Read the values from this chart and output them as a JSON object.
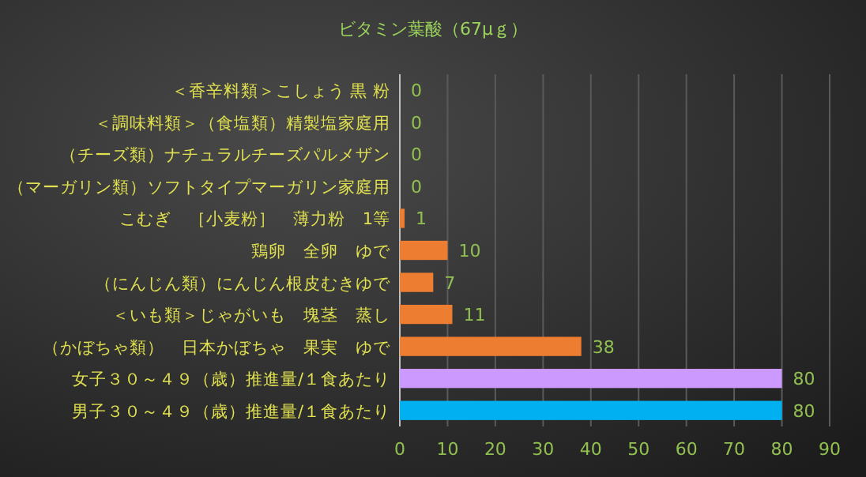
{
  "chart_data": {
    "type": "bar",
    "orientation": "horizontal",
    "title": "ビタミン葉酸（67μｇ）",
    "categories": [
      "＜香辛料類＞こしょう 黒 粉",
      "＜調味料類＞（食塩類）精製塩家庭用",
      "（チーズ類）ナチュラルチーズパルメザン",
      "（マーガリン類）ソフトタイプマーガリン家庭用",
      "こむぎ　［小麦粉］　薄力粉　1等",
      "鶏卵　全卵　ゆで",
      "（にんじん類）にんじん根皮むきゆで",
      "＜いも類＞じゃがいも　塊茎　蒸し",
      "（かぼちゃ類）　日本かぼちゃ　果実　ゆで",
      "女子３０～４９（歳）推進量/１食あたり",
      "男子３０～４９（歳）推進量/１食あたり"
    ],
    "values": [
      0,
      0,
      0,
      0,
      1,
      10,
      7,
      11,
      38,
      80,
      80
    ],
    "colors": [
      "#ed7d31",
      "#ed7d31",
      "#ed7d31",
      "#ed7d31",
      "#ed7d31",
      "#ed7d31",
      "#ed7d31",
      "#ed7d31",
      "#ed7d31",
      "#cc99ff",
      "#00b0f0"
    ],
    "data_labels": true,
    "xlim": [
      0,
      90
    ],
    "xticks": [
      0,
      10,
      20,
      30,
      40,
      50,
      60,
      70,
      80,
      90
    ],
    "grid": "x"
  }
}
